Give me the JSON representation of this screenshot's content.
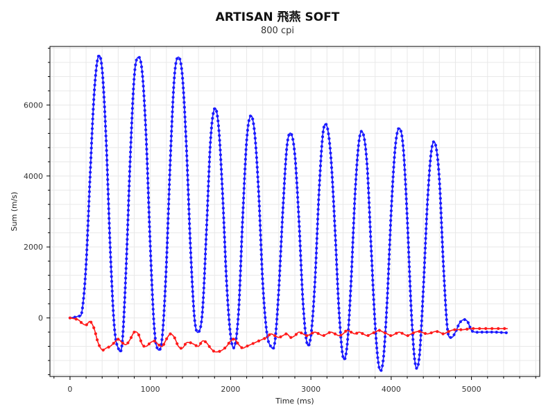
{
  "chart_data": {
    "type": "line",
    "title": "ARTISAN 飛燕 SOFT",
    "subtitle": "800 cpi",
    "xlabel": "Time (ms)",
    "ylabel": "Sum (m/s)",
    "xlim": [
      -250,
      5850
    ],
    "ylim": [
      -1650,
      7650
    ],
    "x_ticks": [
      0,
      1000,
      2000,
      3000,
      4000,
      5000
    ],
    "y_ticks": [
      0,
      2000,
      4000,
      6000
    ],
    "grid": true,
    "legend": "none",
    "series_colors": {
      "blue": "#1a1aff",
      "red": "#ff1a1a",
      "outline": "#666666"
    },
    "series": [
      {
        "color": "blue",
        "points": [
          [
            0,
            0
          ],
          [
            100,
            50
          ],
          [
            150,
            200
          ],
          [
            200,
            1500
          ],
          [
            250,
            4000
          ],
          [
            300,
            6300
          ],
          [
            350,
            7350
          ],
          [
            400,
            7000
          ],
          [
            450,
            5000
          ],
          [
            500,
            2000
          ],
          [
            550,
            -200
          ],
          [
            600,
            -850
          ],
          [
            650,
            -700
          ],
          [
            700,
            1500
          ],
          [
            750,
            4500
          ],
          [
            800,
            6800
          ],
          [
            850,
            7350
          ],
          [
            900,
            6900
          ],
          [
            950,
            5000
          ],
          [
            1000,
            2000
          ],
          [
            1050,
            -300
          ],
          [
            1100,
            -900
          ],
          [
            1150,
            -500
          ],
          [
            1200,
            1500
          ],
          [
            1250,
            4500
          ],
          [
            1300,
            6800
          ],
          [
            1350,
            7350
          ],
          [
            1400,
            6800
          ],
          [
            1450,
            4800
          ],
          [
            1500,
            2000
          ],
          [
            1550,
            0
          ],
          [
            1600,
            -400
          ],
          [
            1650,
            200
          ],
          [
            1700,
            2500
          ],
          [
            1750,
            5000
          ],
          [
            1800,
            5900
          ],
          [
            1850,
            5400
          ],
          [
            1900,
            3500
          ],
          [
            1950,
            1000
          ],
          [
            2000,
            -500
          ],
          [
            2050,
            -800
          ],
          [
            2100,
            200
          ],
          [
            2150,
            2800
          ],
          [
            2200,
            5000
          ],
          [
            2250,
            5700
          ],
          [
            2300,
            5200
          ],
          [
            2350,
            3500
          ],
          [
            2400,
            1000
          ],
          [
            2450,
            -400
          ],
          [
            2500,
            -800
          ],
          [
            2550,
            -700
          ],
          [
            2600,
            800
          ],
          [
            2650,
            3000
          ],
          [
            2700,
            4800
          ],
          [
            2750,
            5200
          ],
          [
            2800,
            4600
          ],
          [
            2850,
            2800
          ],
          [
            2900,
            500
          ],
          [
            2950,
            -700
          ],
          [
            3000,
            -500
          ],
          [
            3050,
            1000
          ],
          [
            3100,
            3500
          ],
          [
            3150,
            5200
          ],
          [
            3200,
            5400
          ],
          [
            3250,
            4500
          ],
          [
            3300,
            2500
          ],
          [
            3350,
            200
          ],
          [
            3400,
            -1100
          ],
          [
            3450,
            -800
          ],
          [
            3500,
            1000
          ],
          [
            3550,
            3500
          ],
          [
            3600,
            5000
          ],
          [
            3650,
            5200
          ],
          [
            3700,
            4300
          ],
          [
            3750,
            2000
          ],
          [
            3800,
            -200
          ],
          [
            3850,
            -1400
          ],
          [
            3900,
            -1200
          ],
          [
            3950,
            500
          ],
          [
            4000,
            3000
          ],
          [
            4050,
            4800
          ],
          [
            4100,
            5350
          ],
          [
            4150,
            4800
          ],
          [
            4200,
            2800
          ],
          [
            4250,
            200
          ],
          [
            4300,
            -1300
          ],
          [
            4350,
            -1100
          ],
          [
            4400,
            800
          ],
          [
            4450,
            3200
          ],
          [
            4500,
            4700
          ],
          [
            4550,
            4900
          ],
          [
            4600,
            3900
          ],
          [
            4650,
            1500
          ],
          [
            4700,
            -300
          ],
          [
            4750,
            -550
          ],
          [
            4800,
            -400
          ],
          [
            4850,
            -150
          ],
          [
            4900,
            -50
          ],
          [
            4950,
            -100
          ],
          [
            5000,
            -350
          ],
          [
            5050,
            -400
          ],
          [
            5100,
            -400
          ],
          [
            5200,
            -400
          ],
          [
            5300,
            -400
          ],
          [
            5450,
            -420
          ]
        ]
      },
      {
        "color": "red",
        "points": [
          [
            0,
            0
          ],
          [
            100,
            -50
          ],
          [
            150,
            -150
          ],
          [
            200,
            -200
          ],
          [
            250,
            -100
          ],
          [
            300,
            -300
          ],
          [
            350,
            -700
          ],
          [
            400,
            -900
          ],
          [
            450,
            -850
          ],
          [
            500,
            -800
          ],
          [
            550,
            -700
          ],
          [
            600,
            -600
          ],
          [
            650,
            -700
          ],
          [
            700,
            -750
          ],
          [
            750,
            -600
          ],
          [
            800,
            -400
          ],
          [
            850,
            -450
          ],
          [
            900,
            -750
          ],
          [
            950,
            -800
          ],
          [
            1000,
            -700
          ],
          [
            1050,
            -650
          ],
          [
            1100,
            -750
          ],
          [
            1150,
            -800
          ],
          [
            1200,
            -600
          ],
          [
            1250,
            -450
          ],
          [
            1300,
            -550
          ],
          [
            1350,
            -800
          ],
          [
            1400,
            -850
          ],
          [
            1450,
            -700
          ],
          [
            1500,
            -700
          ],
          [
            1550,
            -750
          ],
          [
            1600,
            -800
          ],
          [
            1650,
            -650
          ],
          [
            1700,
            -700
          ],
          [
            1750,
            -850
          ],
          [
            1800,
            -950
          ],
          [
            1850,
            -950
          ],
          [
            1900,
            -900
          ],
          [
            1950,
            -800
          ],
          [
            2000,
            -650
          ],
          [
            2050,
            -600
          ],
          [
            2100,
            -750
          ],
          [
            2150,
            -850
          ],
          [
            2200,
            -800
          ],
          [
            2250,
            -750
          ],
          [
            2300,
            -700
          ],
          [
            2350,
            -650
          ],
          [
            2400,
            -600
          ],
          [
            2450,
            -550
          ],
          [
            2500,
            -450
          ],
          [
            2550,
            -500
          ],
          [
            2600,
            -550
          ],
          [
            2650,
            -500
          ],
          [
            2700,
            -450
          ],
          [
            2750,
            -550
          ],
          [
            2800,
            -500
          ],
          [
            2850,
            -400
          ],
          [
            2900,
            -450
          ],
          [
            2950,
            -500
          ],
          [
            3000,
            -450
          ],
          [
            3050,
            -400
          ],
          [
            3100,
            -450
          ],
          [
            3150,
            -500
          ],
          [
            3200,
            -450
          ],
          [
            3250,
            -400
          ],
          [
            3300,
            -450
          ],
          [
            3350,
            -500
          ],
          [
            3400,
            -450
          ],
          [
            3450,
            -350
          ],
          [
            3500,
            -400
          ],
          [
            3550,
            -450
          ],
          [
            3600,
            -400
          ],
          [
            3650,
            -450
          ],
          [
            3700,
            -500
          ],
          [
            3750,
            -450
          ],
          [
            3800,
            -400
          ],
          [
            3850,
            -350
          ],
          [
            3900,
            -400
          ],
          [
            3950,
            -450
          ],
          [
            4000,
            -500
          ],
          [
            4050,
            -450
          ],
          [
            4100,
            -400
          ],
          [
            4150,
            -450
          ],
          [
            4200,
            -500
          ],
          [
            4250,
            -450
          ],
          [
            4300,
            -400
          ],
          [
            4350,
            -380
          ],
          [
            4400,
            -420
          ],
          [
            4450,
            -450
          ],
          [
            4500,
            -420
          ],
          [
            4550,
            -380
          ],
          [
            4600,
            -400
          ],
          [
            4650,
            -450
          ],
          [
            4700,
            -400
          ],
          [
            4750,
            -350
          ],
          [
            4800,
            -330
          ],
          [
            4850,
            -330
          ],
          [
            4900,
            -330
          ],
          [
            5000,
            -300
          ],
          [
            5100,
            -300
          ],
          [
            5200,
            -300
          ],
          [
            5300,
            -300
          ],
          [
            5450,
            -300
          ]
        ]
      }
    ]
  }
}
